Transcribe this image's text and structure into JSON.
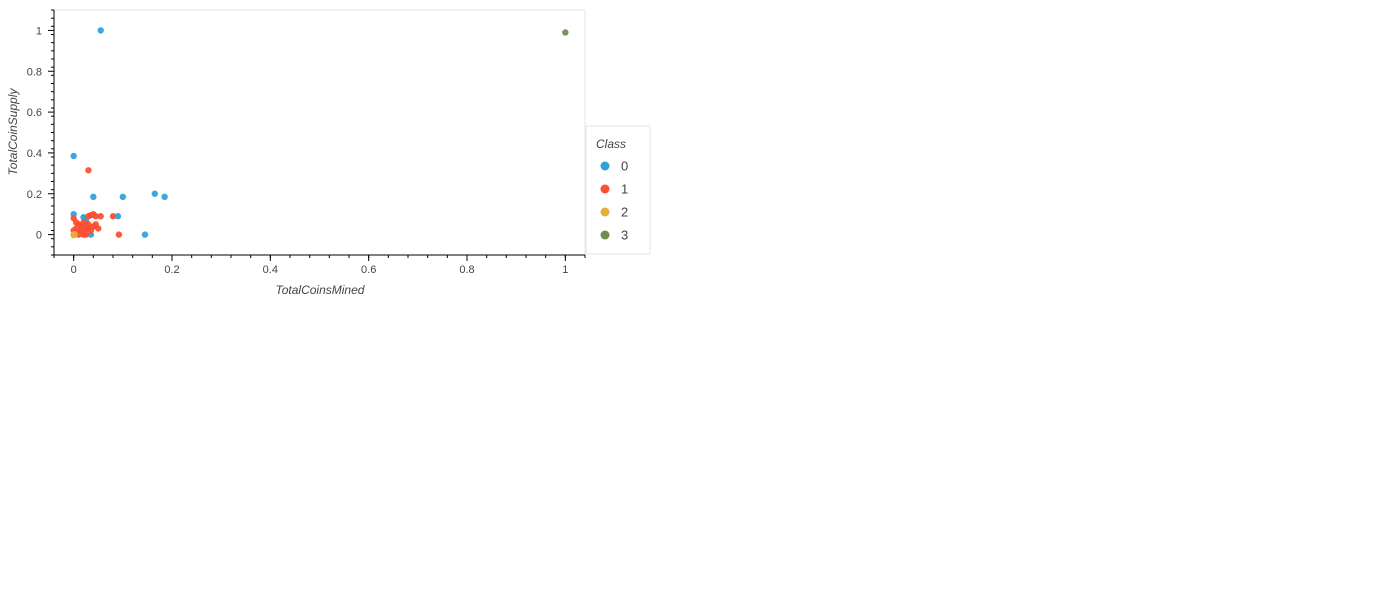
{
  "chart_data": {
    "type": "scatter",
    "xlabel": "TotalCoinsMined",
    "ylabel": "TotalCoinSupply",
    "xlim": [
      -0.04,
      1.04
    ],
    "ylim": [
      -0.1,
      1.1
    ],
    "x_ticks": [
      0,
      0.2,
      0.4,
      0.6,
      0.8,
      1
    ],
    "x_tick_labels": [
      "0",
      "0.2",
      "0.4",
      "0.6",
      "0.8",
      "1"
    ],
    "y_ticks": [
      0,
      0.2,
      0.4,
      0.6,
      0.8,
      1
    ],
    "y_tick_labels": [
      "0",
      "0.2",
      "0.4",
      "0.6",
      "0.8",
      "1"
    ],
    "grid": false,
    "legend": {
      "title": "Class",
      "placement": "right"
    },
    "series": [
      {
        "name": "0",
        "color": "#30a2da",
        "points": [
          [
            0.055,
            1.0
          ],
          [
            0.0,
            0.385
          ],
          [
            0.0,
            0.1
          ],
          [
            0.04,
            0.185
          ],
          [
            0.1,
            0.185
          ],
          [
            0.165,
            0.2
          ],
          [
            0.185,
            0.185
          ],
          [
            0.09,
            0.09
          ],
          [
            0.02,
            0.085
          ],
          [
            0.025,
            0.07
          ],
          [
            0.145,
            0.0
          ],
          [
            0.035,
            0.0
          ],
          [
            0.015,
            0.02
          ],
          [
            0.005,
            0.01
          ]
        ]
      },
      {
        "name": "1",
        "color": "#fc4f30",
        "points": [
          [
            0.03,
            0.315
          ],
          [
            0.0,
            0.08
          ],
          [
            0.005,
            0.06
          ],
          [
            0.01,
            0.05
          ],
          [
            0.015,
            0.04
          ],
          [
            0.02,
            0.03
          ],
          [
            0.025,
            0.025
          ],
          [
            0.03,
            0.09
          ],
          [
            0.035,
            0.095
          ],
          [
            0.04,
            0.1
          ],
          [
            0.045,
            0.09
          ],
          [
            0.055,
            0.09
          ],
          [
            0.08,
            0.09
          ],
          [
            0.05,
            0.03
          ],
          [
            0.04,
            0.04
          ],
          [
            0.03,
            0.05
          ],
          [
            0.025,
            0.045
          ],
          [
            0.02,
            0.06
          ],
          [
            0.015,
            0.02
          ],
          [
            0.01,
            0.0
          ],
          [
            0.02,
            0.0
          ],
          [
            0.025,
            0.0
          ],
          [
            0.035,
            0.02
          ],
          [
            0.03,
            0.03
          ],
          [
            0.0,
            0.02
          ],
          [
            0.005,
            0.03
          ],
          [
            0.092,
            0.0
          ],
          [
            0.045,
            0.05
          ]
        ]
      },
      {
        "name": "2",
        "color": "#e5ae38",
        "points": [
          [
            0.0,
            0.0
          ],
          [
            0.0,
            -0.003
          ],
          [
            0.002,
            0.002
          ]
        ]
      },
      {
        "name": "3",
        "color": "#6d904f",
        "points": [
          [
            1.0,
            0.99
          ]
        ]
      }
    ]
  }
}
